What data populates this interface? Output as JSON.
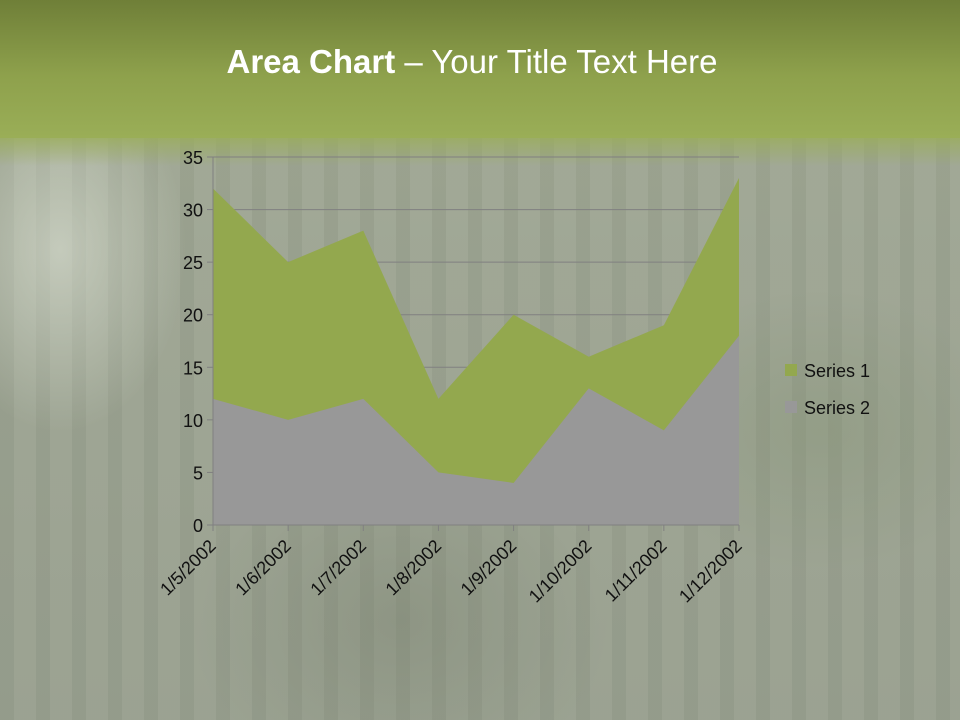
{
  "title": {
    "bold": "Area Chart",
    "rest": " – Your Title Text Here"
  },
  "chart_data": {
    "type": "area",
    "stacked": true,
    "title": "Area Chart – Your Title Text Here",
    "categories": [
      "1/5/2002",
      "1/6/2002",
      "1/7/2002",
      "1/8/2002",
      "1/9/2002",
      "1/10/2002",
      "1/11/2002",
      "1/12/2002"
    ],
    "series": [
      {
        "name": "Series 1",
        "values": [
          20,
          15,
          16,
          7,
          16,
          3,
          10,
          15
        ],
        "color": "#93a84e"
      },
      {
        "name": "Series 2",
        "values": [
          12,
          10,
          12,
          5,
          4,
          13,
          9,
          18
        ],
        "color": "#989898"
      }
    ],
    "ylim": [
      0,
      35
    ],
    "yticks": [
      0,
      5,
      10,
      15,
      20,
      25,
      30,
      35
    ],
    "grid": true,
    "legend_position": "right",
    "xlabel": "",
    "ylabel": ""
  }
}
